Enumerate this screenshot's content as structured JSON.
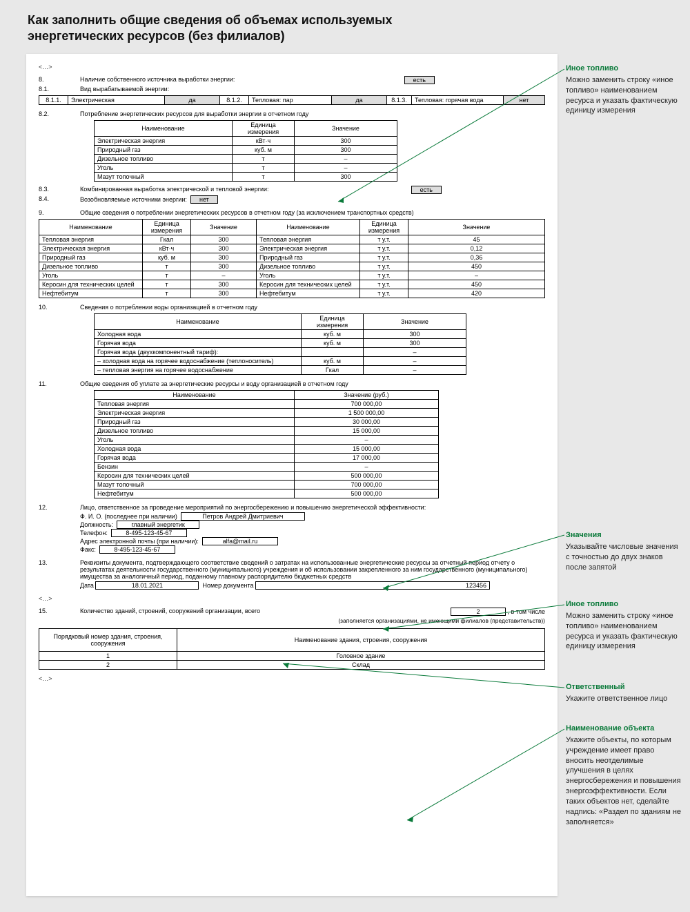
{
  "title": "Как заполнить общие сведения об объемах используемых энергетических ресурсов (без филиалов)",
  "ellipsis": "<…>",
  "sec8": {
    "n": "8.",
    "label": "Наличие собственного источника выработки энергии:",
    "value": "есть",
    "n1": "8.1.",
    "label1": "Вид вырабатываемой энергии:",
    "row": {
      "a_n": "8.1.1.",
      "a_name": "Электрическая",
      "a_val": "да",
      "b_n": "8.1.2.",
      "b_name": "Тепловая: пар",
      "b_val": "да",
      "c_n": "8.1.3.",
      "c_name": "Тепловая: горячая вода",
      "c_val": "нет"
    },
    "n2": "8.2.",
    "label2": "Потребление энергетических ресурсов для выработки энергии в отчетном году",
    "t82": {
      "h1": "Наименование",
      "h2": "Единица измерения",
      "h3": "Значение",
      "rows": [
        {
          "a": "Электрическая энергия",
          "b": "кВт·ч",
          "c": "300"
        },
        {
          "a": "Природный газ",
          "b": "куб. м",
          "c": "300"
        },
        {
          "a": "Дизельное топливо",
          "b": "т",
          "c": "–"
        },
        {
          "a": "Уголь",
          "b": "т",
          "c": "–"
        },
        {
          "a": "Мазут топочный",
          "b": "т",
          "c": "300"
        }
      ]
    },
    "n3": "8.3.",
    "label3": "Комбинированная выработка электрической и тепловой энергии:",
    "val3": "есть",
    "n4": "8.4.",
    "label4": "Возобновляемые источники энергии:",
    "val4": "нет"
  },
  "sec9": {
    "n": "9.",
    "label": "Общие сведения о потреблении энергетических ресурсов в отчетном году (за исключением транспортных средств)",
    "h1": "Наименование",
    "h2": "Единица измерения",
    "h3": "Значение",
    "h4": "Наименование",
    "h5": "Единица измерения",
    "h6": "Значение",
    "rows": [
      {
        "a": "Тепловая энергия",
        "b": "Гкал",
        "c": "300",
        "d": "Тепловая энергия",
        "e": "т у.т.",
        "f": "45"
      },
      {
        "a": "Электрическая энергия",
        "b": "кВт·ч",
        "c": "300",
        "d": "Электрическая энергия",
        "e": "т у.т.",
        "f": "0,12"
      },
      {
        "a": "Природный газ",
        "b": "куб. м",
        "c": "300",
        "d": "Природный газ",
        "e": "т у.т.",
        "f": "0,36"
      },
      {
        "a": "Дизельное топливо",
        "b": "т",
        "c": "300",
        "d": "Дизельное топливо",
        "e": "т у.т.",
        "f": "450"
      },
      {
        "a": "Уголь",
        "b": "т",
        "c": "–",
        "d": "Уголь",
        "e": "т у.т.",
        "f": "–"
      },
      {
        "a": "Керосин для технических целей",
        "b": "т",
        "c": "300",
        "d": "Керосин для технических целей",
        "e": "т у.т.",
        "f": "450"
      },
      {
        "a": "Нефтебитум",
        "b": "т",
        "c": "300",
        "d": "Нефтебитум",
        "e": "т у.т.",
        "f": "420"
      }
    ]
  },
  "sec10": {
    "n": "10.",
    "label": "Сведения о потреблении воды организацией в отчетном году",
    "h1": "Наименование",
    "h2": "Единица измерения",
    "h3": "Значение",
    "rows": [
      {
        "a": "Холодная вода",
        "b": "куб. м",
        "c": "300"
      },
      {
        "a": "Горячая вода",
        "b": "куб. м",
        "c": "300"
      },
      {
        "a": "Горячая вода (двухкомпонентный тариф):",
        "b": "",
        "c": "–"
      },
      {
        "a": "– холодная вода на горячее водоснабжение (теплоноситель)",
        "b": "куб. м",
        "c": "–"
      },
      {
        "a": "– тепловая энергия на горячее водоснабжение",
        "b": "Гкал",
        "c": "–"
      }
    ]
  },
  "sec11": {
    "n": "11.",
    "label": "Общие сведения об уплате за энергетические ресурсы и воду организацией в отчетном году",
    "h1": "Наименование",
    "h2": "Значение (руб.)",
    "rows": [
      {
        "a": "Тепловая энергия",
        "b": "700 000,00"
      },
      {
        "a": "Электрическая энергия",
        "b": "1 500 000,00"
      },
      {
        "a": "Природный газ",
        "b": "30 000,00"
      },
      {
        "a": "Дизельное топливо",
        "b": "15 000,00"
      },
      {
        "a": "Уголь",
        "b": "–"
      },
      {
        "a": "Холодная вода",
        "b": "15 000,00"
      },
      {
        "a": "Горячая вода",
        "b": "17 000,00"
      },
      {
        "a": "Бензин",
        "b": "–"
      },
      {
        "a": "Керосин для технических целей",
        "b": "500 000,00"
      },
      {
        "a": "Мазут топочный",
        "b": "700 000,00"
      },
      {
        "a": "Нефтебитум",
        "b": "500 000,00"
      }
    ]
  },
  "sec12": {
    "n": "12.",
    "label": "Лицо, ответственное за проведение мероприятий по энергосбережению и повышению энергетической эффективности:",
    "fio_l": "Ф. И. О. (последнее при наличии)",
    "fio_v": "Петров Андрей Дмитриевич",
    "pos_l": "Должность:",
    "pos_v": "главный энергетик",
    "tel_l": "Телефон:",
    "tel_v": "8-495-123-45-67",
    "mail_l": "Адрес электронной почты (при наличии):",
    "mail_v": "alfa@mail.ru",
    "fax_l": "Факс:",
    "fax_v": "8-495-123-45-67"
  },
  "sec13": {
    "n": "13.",
    "label": "Реквизиты документа, подтверждающего соответствие сведений о затратах на использованные энергетические ресурсы за отчетный период отчету о результатах деятельности государственного (муниципального) учреждения и об использовании закрепленного за ним государственного (муниципального) имущества за аналогичный период, поданному главному распорядителю бюджетных средств",
    "date_l": "Дата",
    "date_v": "18.01.2021",
    "docn_l": "Номер документа",
    "docn_v": "123456"
  },
  "sec15": {
    "n": "15.",
    "label": "Количество зданий, строений, сооружений организации, всего",
    "count": "2",
    "suffix": ", в том числе",
    "note": "(заполняется организациями, не имеющими филиалов (представительств))",
    "h1": "Порядковый номер здания, строения, сооружения",
    "h2": "Наименование здания, строения, сооружения",
    "rows": [
      {
        "a": "1",
        "b": "Головное здание"
      },
      {
        "a": "2",
        "b": "Склад"
      }
    ]
  },
  "callouts": {
    "c1": {
      "h": "Иное топливо",
      "t": "Можно заменить строку «иное топливо» наименованием ресурса и указать фактическую единицу измерения"
    },
    "c2": {
      "h": "Значения",
      "t": "Указывайте числовые значения с точностью до двух знаков после запятой"
    },
    "c3": {
      "h": "Иное топливо",
      "t": "Можно заменить строку «иное топливо» наименованием ресурса и указать фактическую единицу измерения"
    },
    "c4": {
      "h": "Ответственный",
      "t": "Укажите ответственное лицо"
    },
    "c5": {
      "h": "Наименование объекта",
      "t": "Укажите объекты, по которым учреждение имеет право вносить неотделимые улучшения в целях энергосбережения и повышения энергоэффективности. Если таких объектов нет, сделайте надпись: «Раздел по зданиям не заполняется»"
    }
  },
  "colors": {
    "accent": "#0a7a3a",
    "line": "#0a7a3a",
    "bg": "#e8e8e8"
  }
}
